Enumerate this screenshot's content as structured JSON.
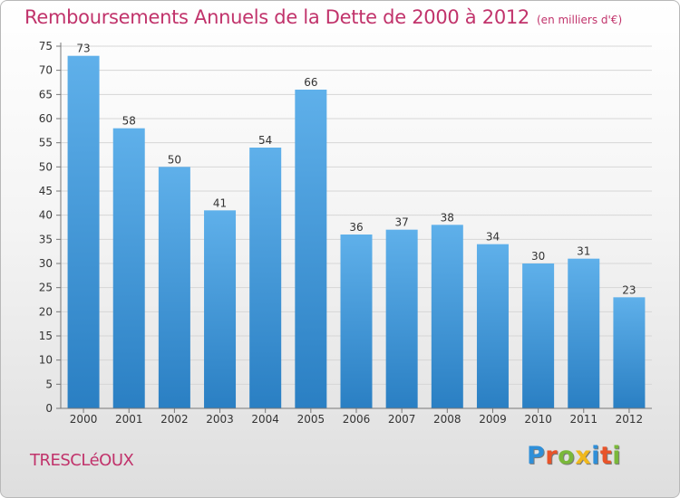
{
  "title": "Remboursements Annuels de la Dette de 2000 à 2012",
  "unit": "(en milliers d'€)",
  "place": "TRESCLéOUX",
  "logo": {
    "letters": [
      {
        "ch": "P",
        "color": "#2f8fd8"
      },
      {
        "ch": "r",
        "color": "#e8542a"
      },
      {
        "ch": "o",
        "color": "#7ab83a"
      },
      {
        "ch": "x",
        "color": "#f0b81c"
      },
      {
        "ch": "i",
        "color": "#2f8fd8"
      },
      {
        "ch": "t",
        "color": "#e8542a"
      },
      {
        "ch": "i",
        "color": "#7ab83a"
      }
    ]
  },
  "chart_data": {
    "type": "bar",
    "categories": [
      "2000",
      "2001",
      "2002",
      "2003",
      "2004",
      "2005",
      "2006",
      "2007",
      "2008",
      "2009",
      "2010",
      "2011",
      "2012"
    ],
    "values": [
      73,
      58,
      50,
      41,
      54,
      66,
      36,
      37,
      38,
      34,
      30,
      31,
      23
    ],
    "ylim": [
      0,
      75
    ],
    "yticks": [
      0,
      5,
      10,
      15,
      20,
      25,
      30,
      35,
      40,
      45,
      50,
      55,
      60,
      65,
      70,
      75
    ],
    "grid": true,
    "bar_color_top": "#5fb0ea",
    "bar_color_bottom": "#2a7fc3"
  }
}
